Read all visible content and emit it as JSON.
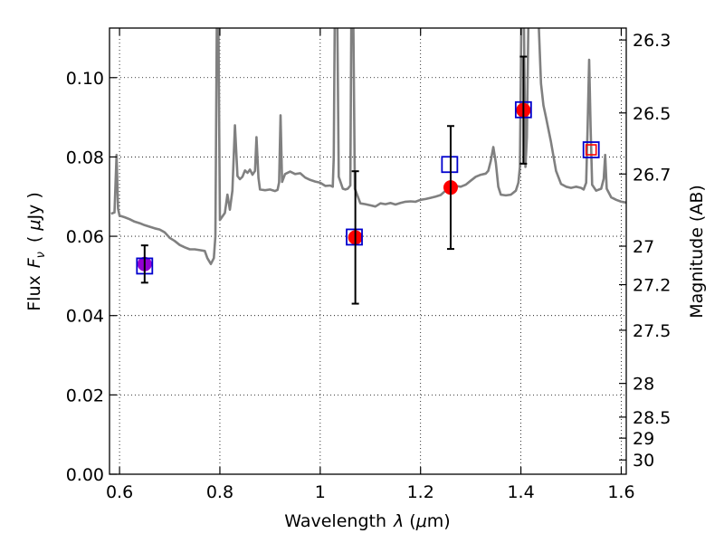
{
  "chart_data": {
    "type": "scatter",
    "xlabel_text": "Wavelength",
    "xlabel_symbol": "λ",
    "xlabel_unit_open": " (",
    "xlabel_unit_mu": "μ",
    "xlabel_unit_rest": "m)",
    "ylabel_text": "Flux",
    "ylabel_symbol_main": "F",
    "ylabel_symbol_sub": "ν",
    "ylabel_unit_open": "(",
    "ylabel_unit_mu": "μ",
    "ylabel_unit_rest": "Jy )",
    "y2label": "Magnitude (AB)",
    "xlim": [
      0.58,
      1.61
    ],
    "ylim": [
      0.0,
      0.1125
    ],
    "grid": true,
    "x_ticks": [
      0.6,
      0.8,
      1.0,
      1.2,
      1.4,
      1.6
    ],
    "x_tick_labels": [
      "0.6",
      "0.8",
      "1",
      "1.2",
      "1.4",
      "1.6"
    ],
    "y_ticks": [
      0.0,
      0.02,
      0.04,
      0.06,
      0.08,
      0.1
    ],
    "y_tick_labels": [
      "0.00",
      "0.02",
      "0.04",
      "0.06",
      "0.08",
      "0.10"
    ],
    "y2_ticks": [
      {
        "flux": 0.1095,
        "label": "26.3"
      },
      {
        "flux": 0.0911,
        "label": "26.5"
      },
      {
        "flux": 0.0757,
        "label": "26.7"
      },
      {
        "flux": 0.0575,
        "label": "27"
      },
      {
        "flux": 0.0478,
        "label": "27.2"
      },
      {
        "flux": 0.0363,
        "label": "27.5"
      },
      {
        "flux": 0.0229,
        "label": "28"
      },
      {
        "flux": 0.0144,
        "label": "28.5"
      },
      {
        "flux": 0.0091,
        "label": "29"
      },
      {
        "flux": 0.0036,
        "label": "30"
      }
    ],
    "series": [
      {
        "type": "line",
        "color": "#808080",
        "points": [
          [
            0.583,
            0.0657
          ],
          [
            0.59,
            0.066
          ],
          [
            0.594,
            0.0805
          ],
          [
            0.597,
            0.067
          ],
          [
            0.6,
            0.0652
          ],
          [
            0.61,
            0.0648
          ],
          [
            0.62,
            0.0643
          ],
          [
            0.63,
            0.0637
          ],
          [
            0.64,
            0.0633
          ],
          [
            0.65,
            0.0628
          ],
          [
            0.66,
            0.0624
          ],
          [
            0.67,
            0.062
          ],
          [
            0.68,
            0.0617
          ],
          [
            0.69,
            0.061
          ],
          [
            0.7,
            0.0596
          ],
          [
            0.71,
            0.0588
          ],
          [
            0.72,
            0.0578
          ],
          [
            0.73,
            0.0572
          ],
          [
            0.74,
            0.0567
          ],
          [
            0.75,
            0.0567
          ],
          [
            0.76,
            0.0565
          ],
          [
            0.77,
            0.0563
          ],
          [
            0.775,
            0.0545
          ],
          [
            0.782,
            0.053
          ],
          [
            0.788,
            0.0545
          ],
          [
            0.791,
            0.06
          ],
          [
            0.794,
            0.115
          ],
          [
            0.797,
            0.115
          ],
          [
            0.8,
            0.0641
          ],
          [
            0.81,
            0.0659
          ],
          [
            0.815,
            0.0705
          ],
          [
            0.82,
            0.0667
          ],
          [
            0.825,
            0.0715
          ],
          [
            0.83,
            0.088
          ],
          [
            0.835,
            0.0752
          ],
          [
            0.84,
            0.0744
          ],
          [
            0.845,
            0.075
          ],
          [
            0.85,
            0.0766
          ],
          [
            0.855,
            0.076
          ],
          [
            0.86,
            0.0768
          ],
          [
            0.865,
            0.0755
          ],
          [
            0.87,
            0.0765
          ],
          [
            0.873,
            0.085
          ],
          [
            0.877,
            0.0747
          ],
          [
            0.88,
            0.0718
          ],
          [
            0.89,
            0.0716
          ],
          [
            0.9,
            0.0718
          ],
          [
            0.91,
            0.0714
          ],
          [
            0.915,
            0.0717
          ],
          [
            0.918,
            0.0736
          ],
          [
            0.921,
            0.0905
          ],
          [
            0.924,
            0.0737
          ],
          [
            0.93,
            0.0757
          ],
          [
            0.94,
            0.0763
          ],
          [
            0.95,
            0.0757
          ],
          [
            0.96,
            0.0759
          ],
          [
            0.97,
            0.0748
          ],
          [
            0.98,
            0.0742
          ],
          [
            0.99,
            0.0738
          ],
          [
            1.0,
            0.0735
          ],
          [
            1.01,
            0.0727
          ],
          [
            1.02,
            0.0728
          ],
          [
            1.025,
            0.0725
          ],
          [
            1.027,
            0.08
          ],
          [
            1.029,
            0.115
          ],
          [
            1.034,
            0.115
          ],
          [
            1.037,
            0.075
          ],
          [
            1.045,
            0.072
          ],
          [
            1.05,
            0.0718
          ],
          [
            1.055,
            0.072
          ],
          [
            1.06,
            0.0728
          ],
          [
            1.062,
            0.115
          ],
          [
            1.066,
            0.115
          ],
          [
            1.069,
            0.072
          ],
          [
            1.08,
            0.0683
          ],
          [
            1.09,
            0.0681
          ],
          [
            1.1,
            0.0678
          ],
          [
            1.11,
            0.0675
          ],
          [
            1.12,
            0.0683
          ],
          [
            1.13,
            0.0681
          ],
          [
            1.14,
            0.0684
          ],
          [
            1.15,
            0.068
          ],
          [
            1.16,
            0.0684
          ],
          [
            1.17,
            0.0687
          ],
          [
            1.18,
            0.0688
          ],
          [
            1.19,
            0.0687
          ],
          [
            1.2,
            0.0692
          ],
          [
            1.21,
            0.0694
          ],
          [
            1.22,
            0.0697
          ],
          [
            1.23,
            0.07
          ],
          [
            1.24,
            0.0704
          ],
          [
            1.25,
            0.0715
          ],
          [
            1.255,
            0.0735
          ],
          [
            1.26,
            0.0725
          ],
          [
            1.27,
            0.0727
          ],
          [
            1.28,
            0.0725
          ],
          [
            1.29,
            0.073
          ],
          [
            1.3,
            0.074
          ],
          [
            1.31,
            0.075
          ],
          [
            1.32,
            0.0755
          ],
          [
            1.33,
            0.0758
          ],
          [
            1.335,
            0.0765
          ],
          [
            1.34,
            0.079
          ],
          [
            1.345,
            0.0825
          ],
          [
            1.35,
            0.0785
          ],
          [
            1.355,
            0.0725
          ],
          [
            1.36,
            0.0705
          ],
          [
            1.37,
            0.0703
          ],
          [
            1.38,
            0.0705
          ],
          [
            1.39,
            0.0715
          ],
          [
            1.395,
            0.0735
          ],
          [
            1.398,
            0.0775
          ],
          [
            1.401,
            0.115
          ],
          [
            1.406,
            0.115
          ],
          [
            1.409,
            0.0775
          ],
          [
            1.412,
            0.085
          ],
          [
            1.415,
            0.115
          ],
          [
            1.435,
            0.115
          ],
          [
            1.44,
            0.0985
          ],
          [
            1.445,
            0.093
          ],
          [
            1.45,
            0.09
          ],
          [
            1.46,
            0.0838
          ],
          [
            1.47,
            0.0765
          ],
          [
            1.48,
            0.0732
          ],
          [
            1.49,
            0.0725
          ],
          [
            1.5,
            0.0722
          ],
          [
            1.51,
            0.0725
          ],
          [
            1.52,
            0.0722
          ],
          [
            1.525,
            0.0718
          ],
          [
            1.53,
            0.0735
          ],
          [
            1.533,
            0.0875
          ],
          [
            1.536,
            0.1045
          ],
          [
            1.539,
            0.0875
          ],
          [
            1.542,
            0.073
          ],
          [
            1.55,
            0.0715
          ],
          [
            1.56,
            0.072
          ],
          [
            1.565,
            0.0745
          ],
          [
            1.568,
            0.0805
          ],
          [
            1.571,
            0.072
          ],
          [
            1.58,
            0.0698
          ],
          [
            1.59,
            0.0692
          ],
          [
            1.6,
            0.0687
          ],
          [
            1.61,
            0.0685
          ]
        ]
      },
      {
        "type": "scatter",
        "marker": "circle",
        "points": [
          {
            "x": 0.65,
            "y": 0.053,
            "yerr": 0.0047,
            "color": "#9400d3"
          },
          {
            "x": 1.07,
            "y": 0.0597,
            "yerr_low": 0.0167,
            "yerr_high": 0.0167,
            "color": "#ff0000"
          },
          {
            "x": 1.26,
            "y": 0.0723,
            "yerr_low": 0.0155,
            "yerr_high": 0.0155,
            "color": "#ff0000"
          },
          {
            "x": 1.405,
            "y": 0.0918,
            "yerr_low": 0.0135,
            "yerr_high": 0.0135,
            "color": "#ff0000"
          }
        ]
      },
      {
        "type": "scatter",
        "marker": "open-square",
        "points": [
          {
            "x": 0.65,
            "y": 0.0525,
            "color": "#0000cd"
          },
          {
            "x": 1.068,
            "y": 0.0598,
            "color": "#0000cd"
          },
          {
            "x": 1.258,
            "y": 0.0781,
            "color": "#0000cd"
          },
          {
            "x": 1.405,
            "y": 0.0919,
            "color": "#0000cd"
          },
          {
            "x": 1.54,
            "y": 0.0818,
            "color": "#0000cd"
          }
        ]
      },
      {
        "type": "scatter",
        "marker": "open-square-small",
        "points": [
          {
            "x": 1.54,
            "y": 0.0818,
            "color": "#ff0000"
          }
        ]
      }
    ]
  }
}
